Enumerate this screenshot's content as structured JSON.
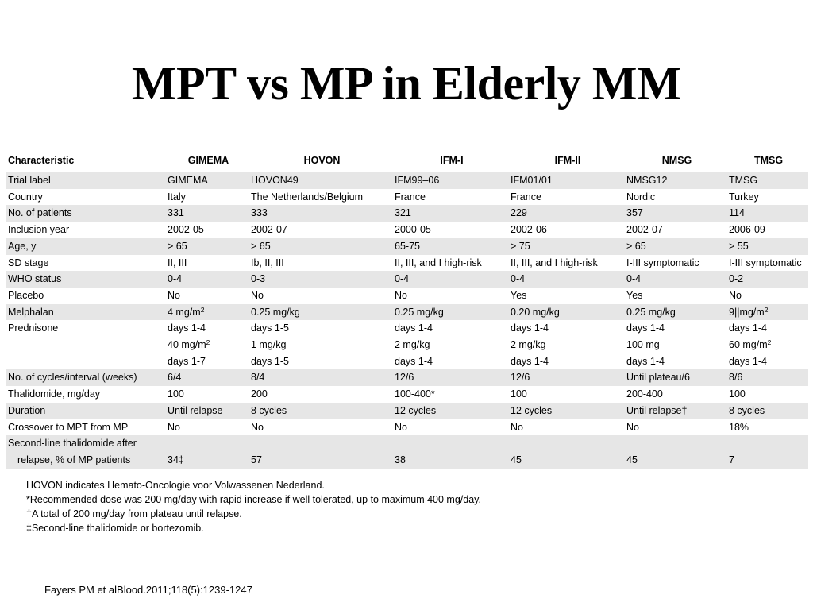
{
  "title": "MPT vs MP in Elderly MM",
  "table": {
    "headers": [
      "Characteristic",
      "GIMEMA",
      "HOVON",
      "IFM-I",
      "IFM-II",
      "NMSG",
      "TMSG"
    ],
    "rows": {
      "trial_label": {
        "label": "Trial label",
        "values": [
          "GIMEMA",
          "HOVON49",
          "IFM99–06",
          "IFM01/01",
          "NMSG12",
          "TMSG"
        ]
      },
      "country": {
        "label": "Country",
        "values": [
          "Italy",
          "The Netherlands/Belgium",
          "France",
          "France",
          "Nordic",
          "Turkey"
        ]
      },
      "patients": {
        "label": "No. of patients",
        "values": [
          "331",
          "333",
          "321",
          "229",
          "357",
          "114"
        ]
      },
      "inclusion_year": {
        "label": "Inclusion year",
        "values": [
          "2002-05",
          "2002-07",
          "2000-05",
          "2002-06",
          "2002-07",
          "2006-09"
        ]
      },
      "age": {
        "label": "Age, y",
        "values": [
          ">  65",
          ">  65",
          "65-75",
          ">  75",
          ">  65",
          ">  55"
        ]
      },
      "sd_stage": {
        "label": "SD stage",
        "values": [
          "II, III",
          "Ib, II, III",
          "II, III, and I high-risk",
          "II, III, and I high-risk",
          "I-III symptomatic",
          "I-III symptomatic"
        ]
      },
      "who_status": {
        "label": "WHO status",
        "values": [
          "0-4",
          "0-3",
          "0-4",
          "0-4",
          "0-4",
          "0-2"
        ]
      },
      "placebo": {
        "label": "Placebo",
        "values": [
          "No",
          "No",
          "No",
          "Yes",
          "Yes",
          "No"
        ]
      },
      "melphalan": {
        "label": "Melphalan",
        "values": [
          "4 mg/m",
          "0.25 mg/kg",
          "0.25 mg/kg",
          "0.20 mg/kg",
          "0.25 mg/kg",
          "9||mg/m"
        ],
        "sup": "2"
      },
      "prednisone": {
        "label": "Prednisone",
        "line1": [
          "days 1-4",
          "days 1-5",
          "days 1-4",
          "days 1-4",
          "days 1-4",
          "days 1-4"
        ],
        "line2": [
          "40 mg/m",
          "1 mg/kg",
          "2 mg/kg",
          "2 mg/kg",
          "100 mg",
          "60 mg/m"
        ],
        "line3": [
          "days 1-7",
          "days 1-5",
          "days 1-4",
          "days 1-4",
          "days 1-4",
          "days 1-4"
        ],
        "sup": "2"
      },
      "cycles": {
        "label": "No. of cycles/interval (weeks)",
        "values": [
          "6/4",
          "8/4",
          "12/6",
          "12/6",
          "Until plateau/6",
          "8/6"
        ]
      },
      "thalidomide": {
        "label": "Thalidomide, mg/day",
        "values": [
          "100",
          "200",
          "100-400*",
          "100",
          "200-400",
          "100"
        ]
      },
      "duration": {
        "label": "Duration",
        "values": [
          "Until relapse",
          "8 cycles",
          "12 cycles",
          "12 cycles",
          "Until relapse†",
          "8 cycles"
        ]
      },
      "crossover": {
        "label": "Crossover to MPT from MP",
        "values": [
          "No",
          "No",
          "No",
          "No",
          "No",
          "18%"
        ]
      },
      "second_line": {
        "label1": "Second-line thalidomide after",
        "label2": "relapse, % of MP patients",
        "values": [
          "34‡",
          "57",
          "38",
          "45",
          "45",
          "7"
        ]
      }
    }
  },
  "footnotes": [
    "HOVON indicates Hemato-Oncologie voor Volwassenen Nederland.",
    "*Recommended dose was 200 mg/day with rapid increase if well tolerated, up to maximum 400 mg/day.",
    "†A total of 200 mg/day from plateau until relapse.",
    "‡Second-line thalidomide or bortezomib."
  ],
  "citation": "Fayers PM et alBlood.2011;118(5):1239-1247"
}
